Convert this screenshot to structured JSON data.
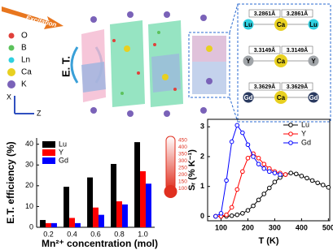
{
  "structure": {
    "excitation": "Excitation",
    "et": "E. T.",
    "axis_x": "X",
    "axis_z": "Z",
    "legend": [
      {
        "label": "O",
        "color": "#e0403a"
      },
      {
        "label": "B",
        "color": "#5cc25c"
      },
      {
        "label": "Ln",
        "color": "#30d0e0"
      },
      {
        "label": "Ca",
        "color": "#e8d020"
      },
      {
        "label": "K",
        "color": "#7a62b8"
      }
    ],
    "rows": [
      {
        "d_left": "3.2861Å",
        "d_right": "3.2861Å",
        "atoms": [
          "Lu",
          "Ca",
          "Lu"
        ],
        "colors": [
          "#30d0e0",
          "#e8d020",
          "#30d0e0"
        ]
      },
      {
        "d_left": "3.3149Å",
        "d_right": "3.3149Å",
        "atoms": [
          "Y",
          "Ca",
          "Y"
        ],
        "colors": [
          "#a0a4a8",
          "#e8d020",
          "#a0a4a8"
        ]
      },
      {
        "d_left": "3.3629Å",
        "d_right": "3.3629Å",
        "atoms": [
          "Gd",
          "Ca",
          "Gd"
        ],
        "colors": [
          "#2a3a60",
          "#e8d020",
          "#2a3a60"
        ]
      }
    ],
    "thermometer_scale": [
      450,
      400,
      350,
      300,
      250,
      200,
      150,
      100
    ]
  },
  "chart_data": [
    {
      "type": "bar",
      "ylabel": "E.T. efficiency (%)",
      "xlabel": "Mn²⁺ concentration (mol)",
      "categories": [
        "0.2",
        "0.4",
        "0.6",
        "0.8",
        "1.0"
      ],
      "series": [
        {
          "name": "Lu",
          "color": "#000000",
          "values": [
            3.5,
            19.5,
            24,
            30.5,
            41
          ]
        },
        {
          "name": "Y",
          "color": "#ff0000",
          "values": [
            2,
            4.5,
            9.5,
            12.5,
            27
          ]
        },
        {
          "name": "Gd",
          "color": "#0000ff",
          "values": [
            2,
            2,
            6,
            11,
            21
          ]
        }
      ],
      "ylim": [
        0,
        43
      ],
      "yticks": [
        0,
        10,
        20,
        30,
        40
      ]
    },
    {
      "type": "line",
      "ylabel": "Sᵣ (% K⁻¹)",
      "xlabel": "T (K)",
      "series": [
        {
          "name": "Lu",
          "color": "#000000",
          "x": [
            80,
            100,
            120,
            140,
            160,
            180,
            200,
            220,
            240,
            260,
            280,
            300,
            320,
            340,
            360,
            380,
            400,
            420,
            440,
            460,
            480,
            500
          ],
          "values": [
            0,
            0,
            0,
            0.02,
            0.05,
            0.1,
            0.2,
            0.35,
            0.55,
            0.75,
            0.95,
            1.15,
            1.3,
            1.4,
            1.45,
            1.42,
            1.35,
            1.28,
            1.2,
            1.12,
            1.05,
            0.97
          ]
        },
        {
          "name": "Y",
          "color": "#ff0000",
          "x": [
            80,
            100,
            120,
            140,
            160,
            180,
            200,
            220,
            240,
            260,
            280,
            300,
            320,
            340
          ],
          "values": [
            0,
            0,
            0.05,
            0.3,
            0.9,
            1.5,
            1.95,
            2.1,
            1.95,
            1.75,
            1.6,
            1.5,
            1.45,
            1.4
          ]
        },
        {
          "name": "Gd",
          "color": "#0000ff",
          "x": [
            80,
            100,
            120,
            140,
            160,
            180,
            200,
            220,
            240,
            260,
            280,
            300,
            320
          ],
          "values": [
            0,
            0.1,
            1.2,
            2.5,
            3.05,
            2.8,
            2.4,
            2.0,
            1.75,
            1.6,
            1.5,
            1.45,
            1.4
          ]
        }
      ],
      "xlim": [
        50,
        505
      ],
      "xticks": [
        100,
        200,
        300,
        400,
        500
      ],
      "ylim": [
        -0.15,
        3.25
      ],
      "yticks": [
        0,
        1,
        2,
        3
      ]
    }
  ]
}
